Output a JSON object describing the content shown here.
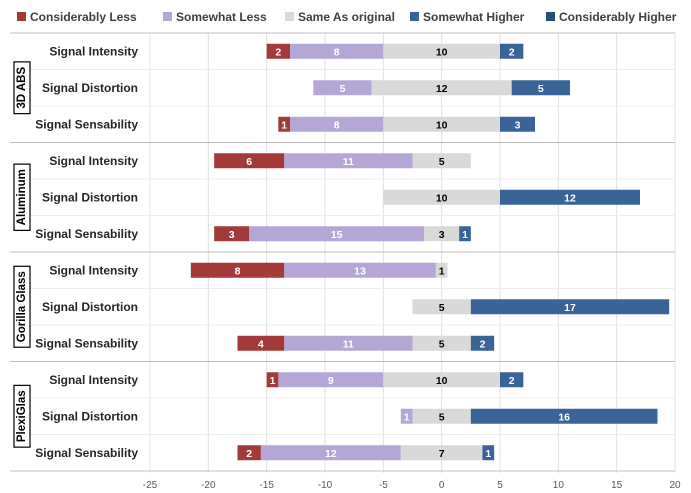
{
  "chart_data": {
    "type": "bar",
    "orientation": "horizontal",
    "stacked": "diverging",
    "legend": {
      "placement": "top"
    },
    "grid": {
      "x": true,
      "y": false
    },
    "xlim": [
      -25,
      20
    ],
    "x_ticks": [
      "-25",
      "-20",
      "-15",
      "-10",
      "-5",
      "0",
      "5",
      "10",
      "15",
      "20"
    ],
    "x_tick_values": [
      -25,
      -20,
      -15,
      -10,
      -5,
      0,
      5,
      10,
      15,
      20
    ],
    "series": [
      {
        "key": "cl",
        "name": "Considerably Less",
        "color": "#a33a3a",
        "text_color": "#ffffff"
      },
      {
        "key": "sl",
        "name": "Somewhat Less",
        "color": "#b4a7d6",
        "text_color": "#ffffff"
      },
      {
        "key": "so",
        "name": "Same As original",
        "color": "#d9d9d9",
        "text_color": "#000000"
      },
      {
        "key": "sh",
        "name": "Somewhat Higher",
        "color": "#3a6497",
        "text_color": "#ffffff"
      },
      {
        "key": "ch",
        "name": "Considerably Higher",
        "color": "#294e7b",
        "text_color": "#ffffff"
      }
    ],
    "groups": [
      {
        "name": "3D ABS",
        "rows": [
          {
            "label": "Signal Intensity",
            "cl": 2,
            "sl": 8,
            "so": 10,
            "sh": 2,
            "ch": 0
          },
          {
            "label": "Signal Distortion",
            "cl": 0,
            "sl": 5,
            "so": 12,
            "sh": 5,
            "ch": 0
          },
          {
            "label": "Signal Sensability",
            "cl": 1,
            "sl": 8,
            "so": 10,
            "sh": 3,
            "ch": 0
          }
        ]
      },
      {
        "name": "Aluminum",
        "rows": [
          {
            "label": "Signal Intensity",
            "cl": 6,
            "sl": 11,
            "so": 5,
            "sh": 0,
            "ch": 0
          },
          {
            "label": "Signal Distortion",
            "cl": 0,
            "sl": 0,
            "so": 10,
            "sh": 12,
            "ch": 0
          },
          {
            "label": "Signal Sensability",
            "cl": 3,
            "sl": 15,
            "so": 3,
            "sh": 1,
            "ch": 0
          }
        ]
      },
      {
        "name": "Gorilla Glass",
        "rows": [
          {
            "label": "Signal Intensity",
            "cl": 8,
            "sl": 13,
            "so": 1,
            "sh": 0,
            "ch": 0
          },
          {
            "label": "Signal Distortion",
            "cl": 0,
            "sl": 0,
            "so": 5,
            "sh": 17,
            "ch": 0
          },
          {
            "label": "Signal Sensability",
            "cl": 4,
            "sl": 11,
            "so": 5,
            "sh": 2,
            "ch": 0
          }
        ]
      },
      {
        "name": "PlexiGlas",
        "rows": [
          {
            "label": "Signal Intensity",
            "cl": 1,
            "sl": 9,
            "so": 10,
            "sh": 2,
            "ch": 0
          },
          {
            "label": "Signal Distortion",
            "cl": 0,
            "sl": 1,
            "so": 5,
            "sh": 16,
            "ch": 0
          },
          {
            "label": "Signal Sensability",
            "cl": 2,
            "sl": 12,
            "so": 7,
            "sh": 1,
            "ch": 0
          }
        ]
      }
    ]
  }
}
